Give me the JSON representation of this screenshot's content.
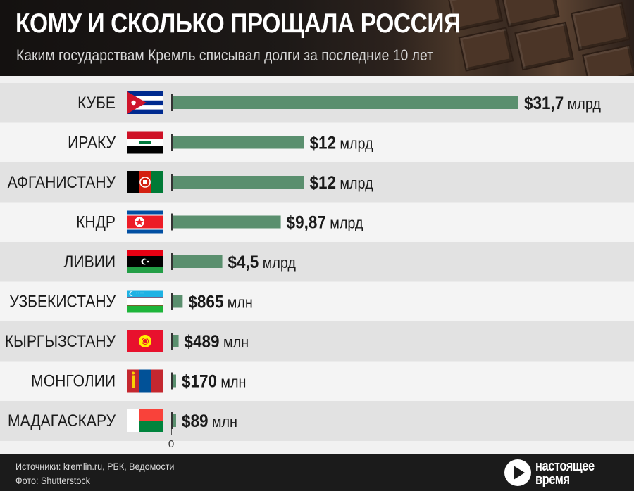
{
  "header": {
    "title": "КОМУ И СКОЛЬКО ПРОЩАЛА РОССИЯ",
    "subtitle": "Каким государствам Кремль списывал долги за последние 10 лет"
  },
  "colors": {
    "bar": "#5a8f6e",
    "row_dark": "#e2e2e2",
    "row_light": "#f4f4f4",
    "text": "#1a1a1a"
  },
  "chart_data": {
    "type": "bar",
    "orientation": "horizontal",
    "unit_base": "млн $",
    "categories": [
      "КУБЕ",
      "ИРАКУ",
      "АФГАНИСТАНУ",
      "КНДР",
      "ЛИВИИ",
      "УЗБЕКИСТАНУ",
      "КЫРГЫЗСТАНУ",
      "МОНГОЛИИ",
      "МАДАГАСКАРУ"
    ],
    "values": [
      31700,
      12000,
      12000,
      9870,
      4500,
      865,
      489,
      170,
      89
    ],
    "value_labels": [
      "$31,7",
      "$12",
      "$12",
      "$9,87",
      "$4,5",
      "$865",
      "$489",
      "$170",
      "$89"
    ],
    "unit_labels": [
      "млрд",
      "млрд",
      "млрд",
      "млрд",
      "млрд",
      "млн",
      "млн",
      "млн",
      "млн"
    ],
    "flag_icons": [
      "cuba-flag-icon",
      "iraq-flag-icon",
      "afghanistan-flag-icon",
      "north-korea-flag-icon",
      "libya-flag-icon",
      "uzbekistan-flag-icon",
      "kyrgyzstan-flag-icon",
      "mongolia-flag-icon",
      "madagascar-flag-icon"
    ],
    "axis_zero_label": "0",
    "xlim": [
      0,
      31700
    ]
  },
  "footer": {
    "sources": "Источники: kremlin.ru, РБК, Ведомости",
    "photo": "Фото: Shutterstock",
    "logo_line1": "настоящее",
    "logo_line2": "время"
  }
}
